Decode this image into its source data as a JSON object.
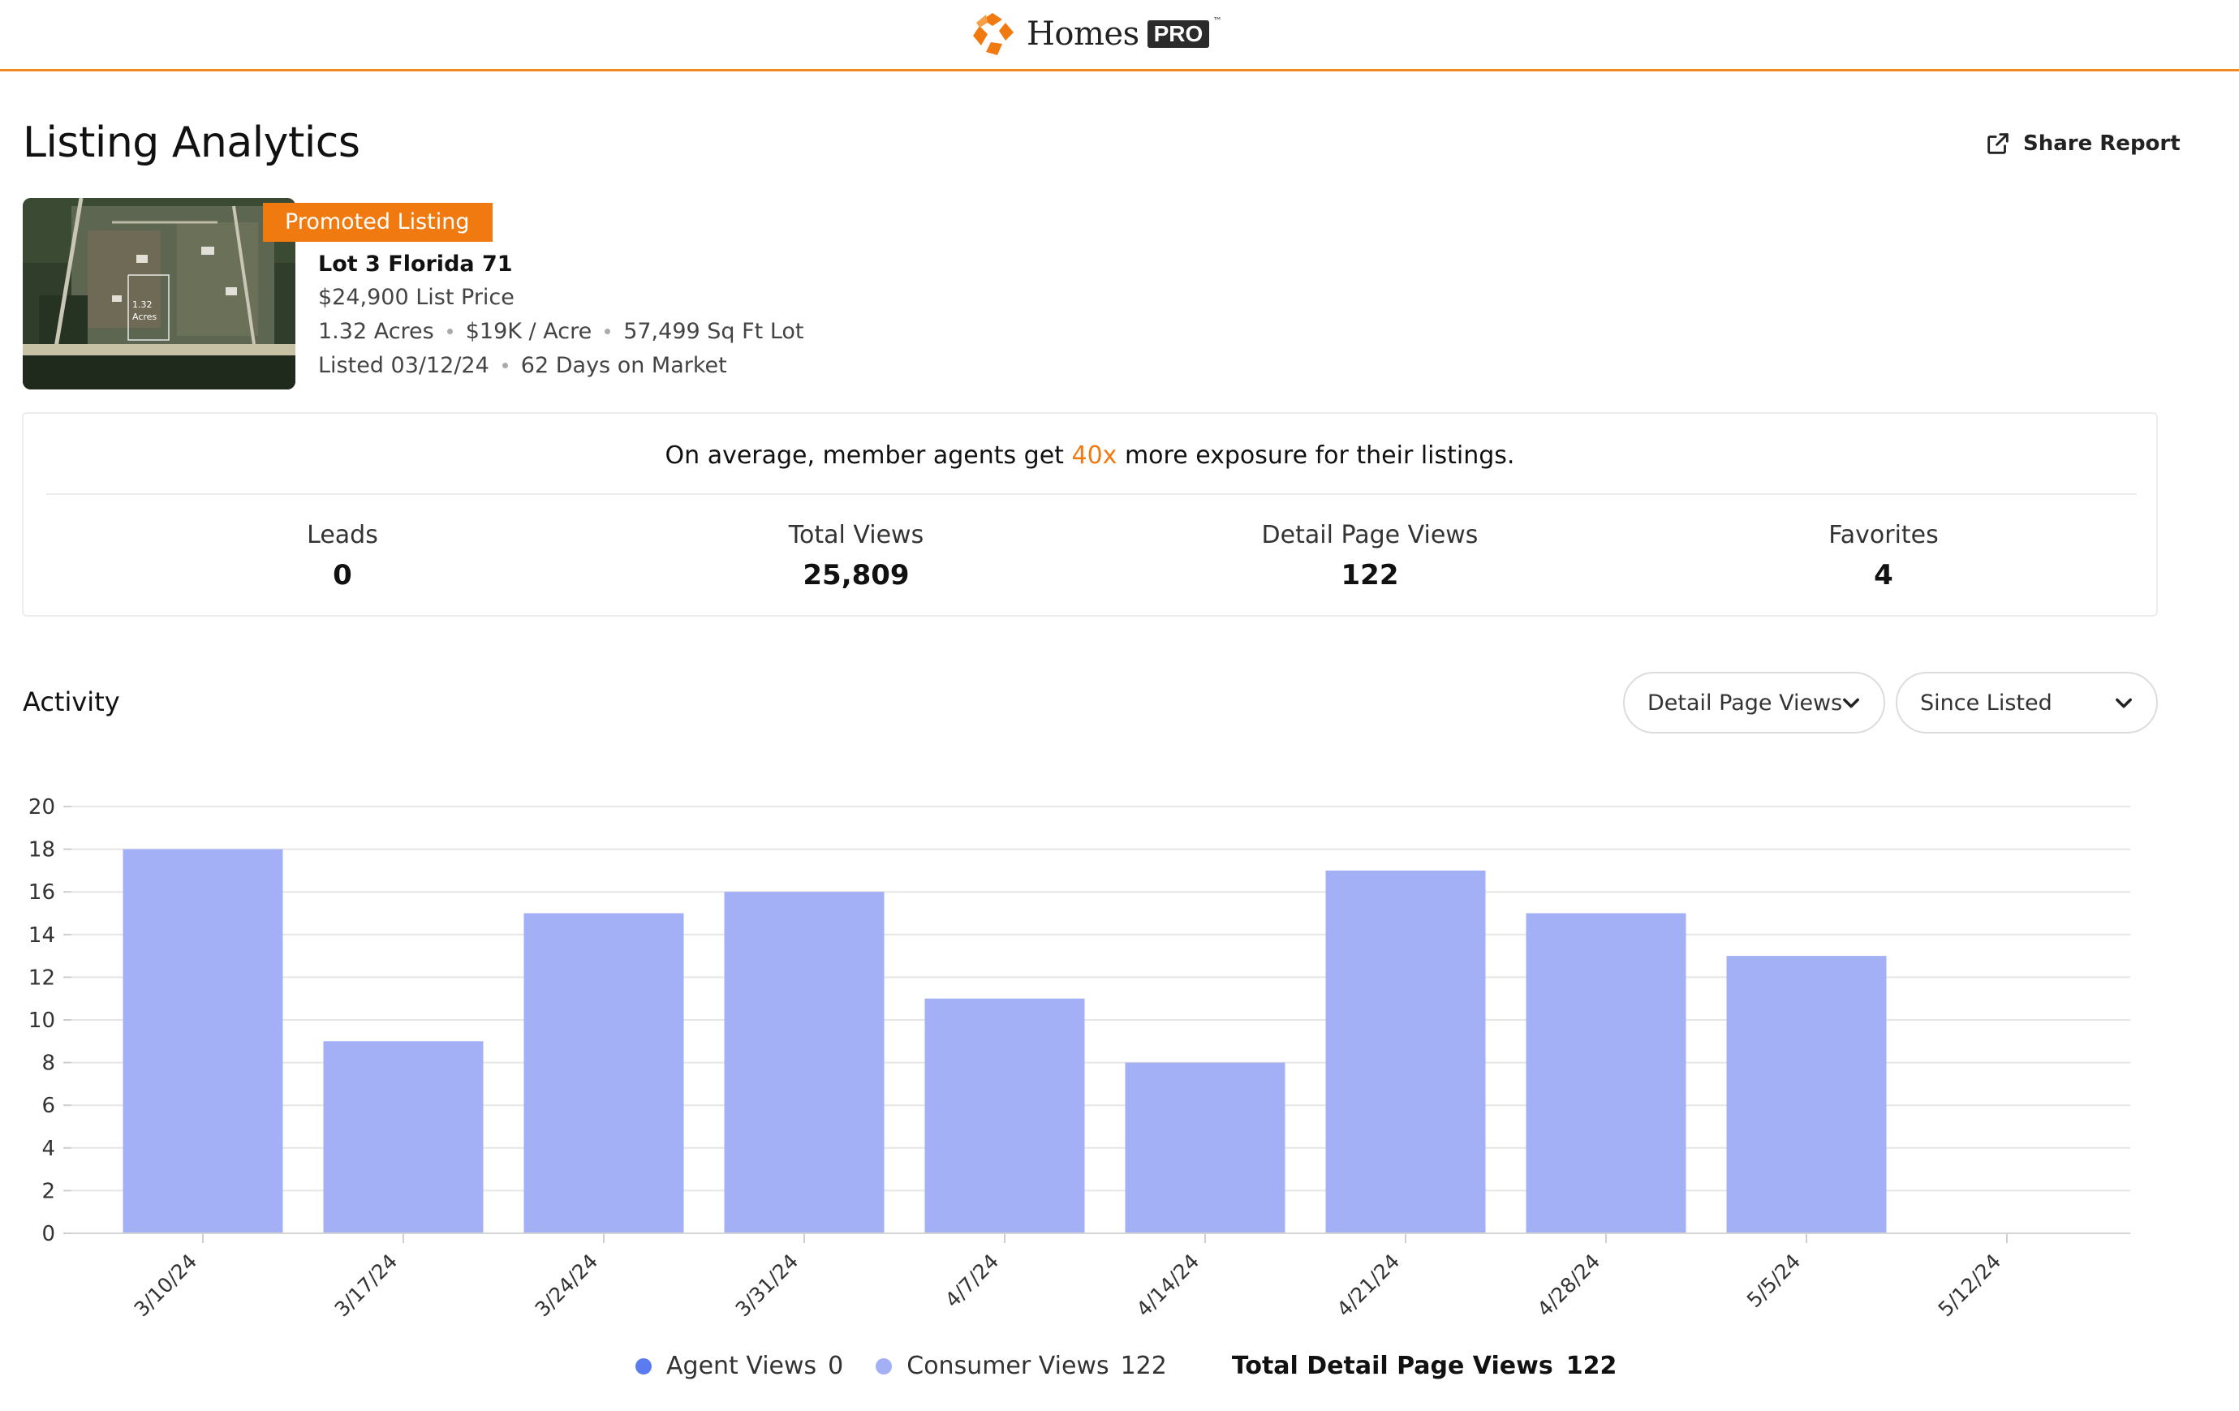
{
  "header": {
    "brand": "Homes",
    "brand_badge": "PRO",
    "trademark": "™"
  },
  "page": {
    "title": "Listing Analytics",
    "share_label": "Share Report"
  },
  "listing": {
    "badge": "Promoted Listing",
    "name": "Lot 3 Florida 71",
    "price": "$24,900 List Price",
    "acres": "1.32 Acres",
    "price_per_acre": "$19K / Acre",
    "lot_size": "57,499 Sq Ft Lot",
    "listed": "Listed 03/12/24",
    "days_on_market": "62 Days on Market",
    "photo_label_1": "1.32",
    "photo_label_2": "Acres"
  },
  "stats": {
    "exposure_prefix": "On average, member agents get ",
    "exposure_highlight": "40x",
    "exposure_suffix": " more exposure for their listings.",
    "leads_label": "Leads",
    "leads_value": "0",
    "total_views_label": "Total Views",
    "total_views_value": "25,809",
    "detail_views_label": "Detail Page Views",
    "detail_views_value": "122",
    "favorites_label": "Favorites",
    "favorites_value": "4"
  },
  "activity": {
    "title": "Activity",
    "metric_dropdown": "Detail Page Views",
    "range_dropdown": "Since Listed"
  },
  "legend": {
    "agent_label": "Agent Views",
    "agent_value": "0",
    "consumer_label": "Consumer Views",
    "consumer_value": "122",
    "total_label": "Total Detail Page Views",
    "total_value": "122"
  },
  "colors": {
    "brand_orange": "#f07a10",
    "bar": "#a3b0f5",
    "agent_dot": "#5b7cf0",
    "consumer_dot": "#a3b0f5"
  },
  "chart_data": {
    "type": "bar",
    "categories": [
      "3/10/24",
      "3/17/24",
      "3/24/24",
      "3/31/24",
      "4/7/24",
      "4/14/24",
      "4/21/24",
      "4/28/24",
      "5/5/24",
      "5/12/24"
    ],
    "series": [
      {
        "name": "Agent Views",
        "values": [
          0,
          0,
          0,
          0,
          0,
          0,
          0,
          0,
          0,
          0
        ]
      },
      {
        "name": "Consumer Views",
        "values": [
          18,
          9,
          15,
          16,
          11,
          8,
          17,
          15,
          13,
          0
        ]
      }
    ],
    "yticks": [
      0,
      2,
      4,
      6,
      8,
      10,
      12,
      14,
      16,
      18,
      20
    ],
    "ylim": [
      0,
      20
    ],
    "grid": true,
    "legend_position": "bottom"
  }
}
